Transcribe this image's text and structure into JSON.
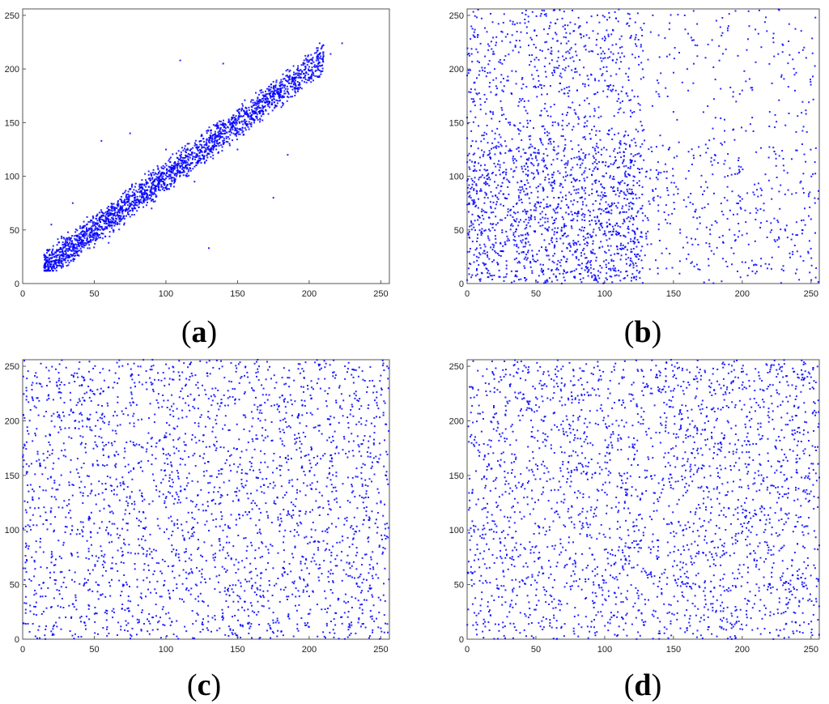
{
  "point_color": "#0000ff",
  "captions": {
    "a": {
      "open": "(",
      "letter": "a",
      "close": ")"
    },
    "b": {
      "open": "(",
      "letter": "b",
      "close": ")"
    },
    "c": {
      "open": "(",
      "letter": "c",
      "close": ")"
    },
    "d": {
      "open": "(",
      "letter": "d",
      "close": ")"
    }
  },
  "chart_data": [
    {
      "id": "a",
      "type": "scatter",
      "title": "",
      "xlabel": "",
      "ylabel": "",
      "xlim": [
        0,
        256
      ],
      "ylim": [
        0,
        256
      ],
      "xticks": [
        0,
        50,
        100,
        150,
        200,
        250
      ],
      "yticks": [
        0,
        50,
        100,
        150,
        200,
        250
      ],
      "grid": false,
      "distribution": "correlated along y = x",
      "points": [
        [
          15,
          15
        ],
        [
          18,
          20
        ],
        [
          20,
          18
        ],
        [
          22,
          25
        ],
        [
          25,
          22
        ],
        [
          28,
          30
        ],
        [
          30,
          27
        ],
        [
          32,
          35
        ],
        [
          35,
          32
        ],
        [
          38,
          40
        ],
        [
          40,
          38
        ],
        [
          42,
          45
        ],
        [
          45,
          42
        ],
        [
          48,
          50
        ],
        [
          50,
          47
        ],
        [
          52,
          55
        ],
        [
          55,
          53
        ],
        [
          58,
          60
        ],
        [
          60,
          58
        ],
        [
          62,
          65
        ],
        [
          65,
          63
        ],
        [
          68,
          70
        ],
        [
          70,
          68
        ],
        [
          72,
          75
        ],
        [
          75,
          73
        ],
        [
          78,
          80
        ],
        [
          80,
          78
        ],
        [
          82,
          85
        ],
        [
          85,
          83
        ],
        [
          88,
          90
        ],
        [
          90,
          88
        ],
        [
          92,
          95
        ],
        [
          95,
          93
        ],
        [
          98,
          100
        ],
        [
          100,
          98
        ],
        [
          102,
          105
        ],
        [
          105,
          103
        ],
        [
          108,
          110
        ],
        [
          110,
          108
        ],
        [
          112,
          115
        ],
        [
          115,
          113
        ],
        [
          118,
          120
        ],
        [
          120,
          118
        ],
        [
          122,
          125
        ],
        [
          125,
          123
        ],
        [
          128,
          130
        ],
        [
          130,
          128
        ],
        [
          135,
          138
        ],
        [
          140,
          142
        ],
        [
          145,
          148
        ],
        [
          150,
          152
        ],
        [
          155,
          158
        ],
        [
          160,
          162
        ],
        [
          165,
          168
        ],
        [
          170,
          172
        ],
        [
          175,
          178
        ],
        [
          180,
          182
        ],
        [
          185,
          188
        ],
        [
          190,
          192
        ],
        [
          195,
          198
        ],
        [
          200,
          202
        ],
        [
          205,
          208
        ],
        [
          210,
          212
        ],
        [
          215,
          214
        ],
        [
          223,
          224
        ],
        [
          110,
          208
        ],
        [
          140,
          205
        ],
        [
          55,
          133
        ],
        [
          130,
          33
        ],
        [
          175,
          80
        ],
        [
          185,
          120
        ],
        [
          75,
          140
        ],
        [
          35,
          75
        ],
        [
          20,
          55
        ],
        [
          60,
          38
        ],
        [
          90,
          70
        ],
        [
          120,
          95
        ],
        [
          150,
          125
        ],
        [
          100,
          125
        ],
        [
          45,
          62
        ]
      ]
    },
    {
      "id": "b",
      "type": "scatter",
      "title": "",
      "xlabel": "",
      "ylabel": "",
      "xlim": [
        0,
        256
      ],
      "ylim": [
        0,
        256
      ],
      "xticks": [
        0,
        50,
        100,
        150,
        200,
        250
      ],
      "yticks": [
        0,
        50,
        100,
        150,
        200,
        250
      ],
      "grid": false,
      "distribution": "block structure, dense in x<128 and y<128",
      "points": [
        [
          5,
          20
        ],
        [
          20,
          200
        ],
        [
          60,
          240
        ],
        [
          100,
          230
        ],
        [
          120,
          180
        ],
        [
          10,
          110
        ],
        [
          40,
          90
        ],
        [
          70,
          60
        ],
        [
          90,
          30
        ],
        [
          115,
          100
        ],
        [
          125,
          10
        ],
        [
          30,
          150
        ],
        [
          80,
          180
        ],
        [
          50,
          220
        ],
        [
          110,
          140
        ],
        [
          140,
          40
        ],
        [
          170,
          90
        ],
        [
          200,
          20
        ],
        [
          230,
          110
        ],
        [
          250,
          60
        ],
        [
          160,
          200
        ],
        [
          190,
          240
        ],
        [
          220,
          160
        ],
        [
          245,
          220
        ],
        [
          135,
          250
        ],
        [
          210,
          70
        ],
        [
          180,
          120
        ],
        [
          240,
          30
        ],
        [
          150,
          160
        ],
        [
          200,
          180
        ]
      ]
    },
    {
      "id": "c",
      "type": "scatter",
      "title": "",
      "xlabel": "",
      "ylabel": "",
      "xlim": [
        0,
        256
      ],
      "ylim": [
        0,
        256
      ],
      "xticks": [
        0,
        50,
        100,
        150,
        200,
        250
      ],
      "yticks": [
        0,
        50,
        100,
        150,
        200,
        250
      ],
      "grid": false,
      "distribution": "uniform",
      "points": [
        [
          10,
          240
        ],
        [
          30,
          20
        ],
        [
          60,
          180
        ],
        [
          90,
          80
        ],
        [
          120,
          220
        ],
        [
          150,
          40
        ],
        [
          180,
          150
        ],
        [
          210,
          90
        ],
        [
          240,
          200
        ],
        [
          250,
          10
        ],
        [
          20,
          120
        ],
        [
          70,
          50
        ],
        [
          110,
          160
        ],
        [
          160,
          230
        ],
        [
          200,
          60
        ],
        [
          230,
          140
        ],
        [
          45,
          90
        ],
        [
          135,
          110
        ],
        [
          175,
          15
        ],
        [
          225,
          250
        ]
      ]
    },
    {
      "id": "d",
      "type": "scatter",
      "title": "",
      "xlabel": "",
      "ylabel": "",
      "xlim": [
        0,
        256
      ],
      "ylim": [
        0,
        256
      ],
      "xticks": [
        0,
        50,
        100,
        150,
        200,
        250
      ],
      "yticks": [
        0,
        50,
        100,
        150,
        200,
        250
      ],
      "grid": false,
      "distribution": "uniform",
      "points": [
        [
          15,
          30
        ],
        [
          40,
          220
        ],
        [
          75,
          140
        ],
        [
          105,
          20
        ],
        [
          130,
          190
        ],
        [
          165,
          70
        ],
        [
          195,
          240
        ],
        [
          220,
          110
        ],
        [
          245,
          170
        ],
        [
          5,
          100
        ],
        [
          55,
          60
        ],
        [
          95,
          250
        ],
        [
          140,
          130
        ],
        [
          185,
          10
        ],
        [
          235,
          50
        ],
        [
          25,
          170
        ],
        [
          115,
          85
        ],
        [
          155,
          210
        ],
        [
          205,
          160
        ],
        [
          250,
          240
        ]
      ]
    }
  ]
}
